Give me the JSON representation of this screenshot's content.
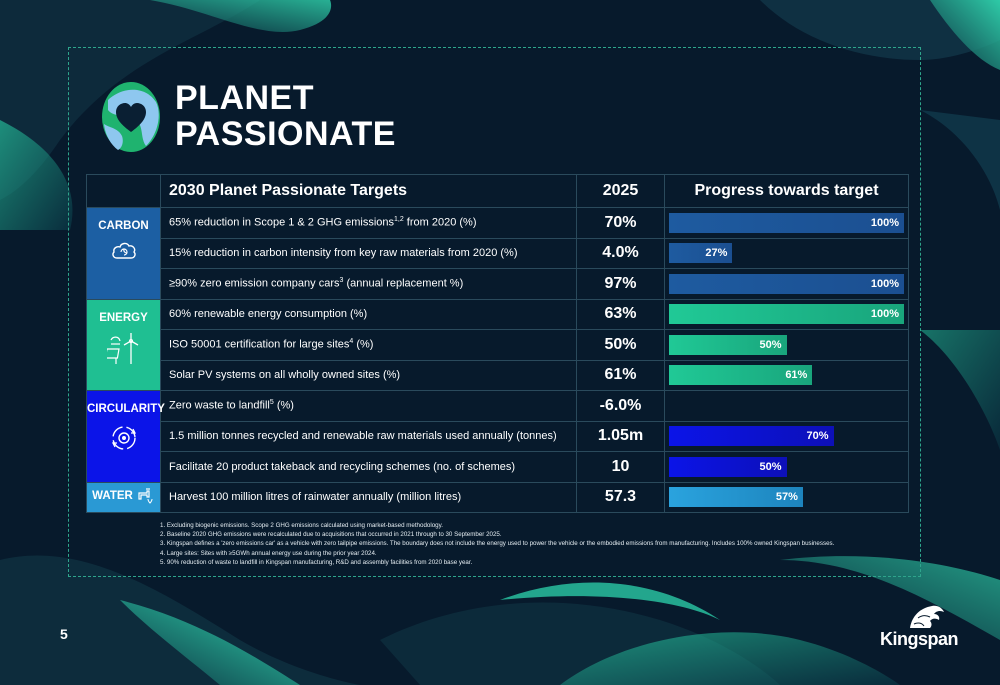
{
  "header": {
    "title_line1": "PLANET",
    "title_line2": "PASSIONATE"
  },
  "table": {
    "headers": {
      "target": "2030 Planet Passionate Targets",
      "year": "2025",
      "progress": "Progress towards target"
    },
    "categories": {
      "carbon": "CARBON",
      "energy": "ENERGY",
      "circularity": "CIRCULARITY",
      "water": "WATER"
    },
    "rows": [
      {
        "target_pre": "65% reduction in Scope 1 & 2 GHG emissions",
        "sup": "1,2",
        "target_post": " from 2020 (%)",
        "value": "70%",
        "progress_label": "100%",
        "progress": 1.0
      },
      {
        "target_pre": "15% reduction in carbon intensity from key raw materials from 2020 (%)",
        "sup": "",
        "target_post": "",
        "value": "4.0%",
        "progress_label": "27%",
        "progress": 0.27
      },
      {
        "target_pre": "≥90% zero emission company cars",
        "sup": "3",
        "target_post": " (annual replacement %)",
        "value": "97%",
        "progress_label": "100%",
        "progress": 1.0
      },
      {
        "target_pre": "60% renewable energy consumption (%)",
        "sup": "",
        "target_post": "",
        "value": "63%",
        "progress_label": "100%",
        "progress": 1.0
      },
      {
        "target_pre": "ISO 50001 certification for large sites",
        "sup": "4",
        "target_post": " (%)",
        "value": "50%",
        "progress_label": "50%",
        "progress": 0.5
      },
      {
        "target_pre": "Solar PV systems on all wholly owned sites (%)",
        "sup": "",
        "target_post": "",
        "value": "61%",
        "progress_label": "61%",
        "progress": 0.61
      },
      {
        "target_pre": "Zero waste to landfill",
        "sup": "5",
        "target_post": " (%)",
        "value": "-6.0%",
        "progress_label": "",
        "progress": 0
      },
      {
        "target_pre": "1.5 million tonnes recycled and renewable raw materials used annually (tonnes)",
        "sup": "",
        "target_post": "",
        "value": "1.05m",
        "progress_label": "70%",
        "progress": 0.7
      },
      {
        "target_pre": "Facilitate 20 product takeback and recycling schemes (no. of schemes)",
        "sup": "",
        "target_post": "",
        "value": "10",
        "progress_label": "50%",
        "progress": 0.5
      },
      {
        "target_pre": "Harvest 100 million litres of rainwater annually (million litres)",
        "sup": "",
        "target_post": "",
        "value": "57.3",
        "progress_label": "57%",
        "progress": 0.57
      }
    ]
  },
  "footnotes": [
    "1. Excluding biogenic emissions. Scope 2 GHG emissions calculated using market-based methodology.",
    "2. Baseline 2020 GHG emissions were recalculated due to acquisitions that occurred in 2021 through to 30 September 2025.",
    "3. Kingspan defines a 'zero emissions car' as a vehicle with zero tailpipe emissions. The boundary does not include the energy used to power the vehicle or the embodied emissions from manufacturing. Includes 100% owned Kingspan businesses.",
    "4. Large sites: Sites with ≥5GWh annual energy use during the prior year 2024.",
    "5. 90% reduction of waste to landfill in Kingspan manufacturing, R&D and assembly facilities from 2020 base year."
  ],
  "page_number": "5",
  "brand": "Kingspan",
  "colors": {
    "background": "#071a2c",
    "carbon": "#1c5fa3",
    "energy": "#1fbf92",
    "circularity": "#0b14e8",
    "water": "#2a99d4"
  }
}
